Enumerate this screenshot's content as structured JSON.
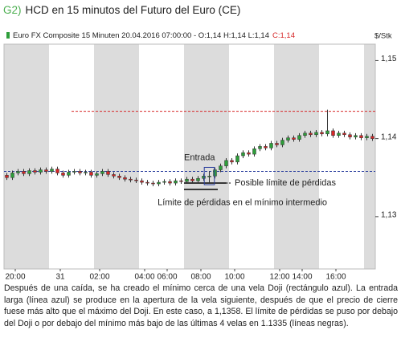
{
  "chart_data": {
    "type": "candlestick",
    "title_prefix": "G2)",
    "title": "HCD en 15 minutos del Futuro del Euro (CE)",
    "legend_text": "Euro FX Composite 15 Minuten  20.04.2016 07:00:00 - O:1,14 H:1,14 L:1,14",
    "legend_close": "C:1,14",
    "y_unit": "$/Stk",
    "up_color": "#2e9e3a",
    "down_color": "#d62728",
    "open": [
      1.1353,
      1.135,
      1.1356,
      1.1358,
      1.1355,
      1.1359,
      1.1357,
      1.136,
      1.1358,
      1.1361,
      1.1356,
      1.1353,
      1.1357,
      1.1358,
      1.1356,
      1.1357,
      1.1353,
      1.1355,
      1.1358,
      1.1354,
      1.1352,
      1.135,
      1.1348,
      1.1347,
      1.1346,
      1.1344,
      1.1343,
      1.1342,
      1.1344,
      1.1345,
      1.1343,
      1.1346,
      1.1345,
      1.1348,
      1.1346,
      1.1349,
      1.1352,
      1.1352,
      1.136,
      1.1365,
      1.1372,
      1.137,
      1.1378,
      1.1382,
      1.138,
      1.1387,
      1.139,
      1.1388,
      1.1394,
      1.1392,
      1.1398,
      1.1401,
      1.1399,
      1.1404,
      1.1407,
      1.1405,
      1.1408,
      1.1406,
      1.141,
      1.1404,
      1.1407,
      1.1405,
      1.1402,
      1.1404,
      1.1401,
      1.1403
    ],
    "high": [
      1.1356,
      1.1359,
      1.1361,
      1.1361,
      1.1362,
      1.1362,
      1.1363,
      1.1363,
      1.1364,
      1.1364,
      1.1359,
      1.136,
      1.1361,
      1.1361,
      1.136,
      1.136,
      1.1358,
      1.1361,
      1.1361,
      1.1357,
      1.1355,
      1.1353,
      1.1351,
      1.135,
      1.1349,
      1.1347,
      1.1346,
      1.1347,
      1.1348,
      1.1348,
      1.1349,
      1.1349,
      1.1351,
      1.1351,
      1.1352,
      1.1355,
      1.1358,
      1.1363,
      1.1368,
      1.1375,
      1.1375,
      1.1381,
      1.1385,
      1.1385,
      1.139,
      1.1393,
      1.1393,
      1.1397,
      1.1397,
      1.1401,
      1.1404,
      1.1404,
      1.1407,
      1.141,
      1.141,
      1.1411,
      1.1411,
      1.1437,
      1.1413,
      1.141,
      1.141,
      1.1408,
      1.1407,
      1.1407,
      1.1406,
      1.1406
    ],
    "low": [
      1.1347,
      1.1347,
      1.1353,
      1.1352,
      1.1352,
      1.1354,
      1.1354,
      1.1355,
      1.1355,
      1.1353,
      1.135,
      1.135,
      1.1354,
      1.1353,
      1.1353,
      1.135,
      1.135,
      1.1352,
      1.1351,
      1.1349,
      1.1347,
      1.1345,
      1.1344,
      1.1343,
      1.1341,
      1.134,
      1.1339,
      1.1339,
      1.1341,
      1.134,
      1.134,
      1.1342,
      1.1342,
      1.1343,
      1.1343,
      1.1346,
      1.1343,
      1.1349,
      1.1357,
      1.1362,
      1.1367,
      1.1367,
      1.1375,
      1.1377,
      1.1377,
      1.1384,
      1.1385,
      1.1385,
      1.1389,
      1.1389,
      1.1395,
      1.1396,
      1.1396,
      1.1401,
      1.1402,
      1.1402,
      1.1403,
      1.1403,
      1.1401,
      1.1401,
      1.1402,
      1.1399,
      1.1399,
      1.1398,
      1.1398,
      1.1397
    ],
    "close": [
      1.135,
      1.1356,
      1.1358,
      1.1355,
      1.1359,
      1.1357,
      1.136,
      1.1358,
      1.1361,
      1.1356,
      1.1353,
      1.1357,
      1.1358,
      1.1356,
      1.1357,
      1.1353,
      1.1355,
      1.1358,
      1.1354,
      1.1352,
      1.135,
      1.1348,
      1.1347,
      1.1346,
      1.1344,
      1.1343,
      1.1342,
      1.1344,
      1.1345,
      1.1343,
      1.1346,
      1.1345,
      1.1348,
      1.1346,
      1.1349,
      1.1352,
      1.1352,
      1.136,
      1.1365,
      1.1372,
      1.137,
      1.1378,
      1.1382,
      1.138,
      1.1387,
      1.139,
      1.1388,
      1.1394,
      1.1392,
      1.1398,
      1.1401,
      1.1399,
      1.1404,
      1.1407,
      1.1405,
      1.1408,
      1.1406,
      1.141,
      1.1404,
      1.1407,
      1.1405,
      1.1402,
      1.1404,
      1.1401,
      1.1403,
      1.14
    ],
    "xlim": [
      0,
      66
    ],
    "xticks": [
      {
        "value": 2,
        "label": "20:00"
      },
      {
        "value": 10,
        "label": "31"
      },
      {
        "value": 17,
        "label": "02:00"
      },
      {
        "value": 25,
        "label": "04:00"
      },
      {
        "value": 29,
        "label": "06:00"
      },
      {
        "value": 35,
        "label": "08:00"
      },
      {
        "value": 41,
        "label": "10:00"
      },
      {
        "value": 49,
        "label": "12:00"
      },
      {
        "value": 53,
        "label": "14:00"
      },
      {
        "value": 59,
        "label": "16:00"
      }
    ],
    "ylim": [
      1.1233,
      1.1521
    ],
    "yticks": [
      {
        "value": 1.15,
        "label": "1,15"
      },
      {
        "value": 1.14,
        "label": "1,14"
      },
      {
        "value": 1.13,
        "label": "1,13"
      }
    ],
    "reference_lines": [
      {
        "value": 1.1435,
        "color": "#d62728"
      },
      {
        "value": 1.1358,
        "color": "#2b3f9e",
        "label": "Entrada"
      },
      {
        "value": 1.1343,
        "color": "#000000",
        "label": "Posible límite de pérdidas"
      },
      {
        "value": 1.1335,
        "color": "#000000",
        "label": "Límite de pérdidas en el mínimo intermedio"
      }
    ],
    "caption": "Después de una caída, se ha creado el mínimo cerca de una vela Doji (rectángulo azul). La entrada larga (línea azul) se produce en la apertura de la vela siguiente, después de que el precio de cierre fuese más alto que el máximo del Doji. En este caso, a 1,1358. El límite de pérdidas se puso por debajo del Doji o por debajo del mínimo más bajo de las últimas 4 velas en 1.1335 (líneas negras)."
  }
}
